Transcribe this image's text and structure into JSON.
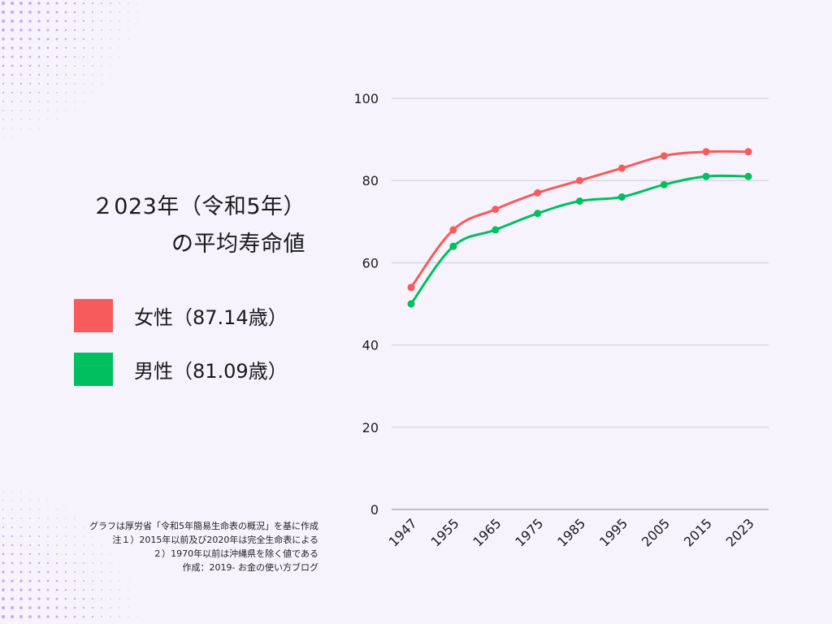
{
  "title": {
    "line1": "２023年（令和5年）",
    "line2": "の平均寿命値"
  },
  "legend": [
    {
      "label": "女性（87.14歳）",
      "color": "#f75b5b"
    },
    {
      "label": "男性（81.09歳）",
      "color": "#00bf5f"
    }
  ],
  "notes": [
    "グラフは厚労省「令和5年簡易生命表の概況」を基に作成",
    "注１）2015年以前及び2020年は完全生命表による",
    "２）1970年以前は沖縄県を除く値である",
    "作成：2019- お金の使い方ブログ"
  ],
  "colors": {
    "background": "#f6f3fd",
    "female": "#f75b5b",
    "male": "#00bf5f",
    "grid": "#cfcbd6",
    "dots": "#c7a8ec"
  },
  "chart_data": {
    "type": "line",
    "categories": [
      "1947",
      "1955",
      "1965",
      "1975",
      "1985",
      "1995",
      "2005",
      "2015",
      "2023"
    ],
    "series": [
      {
        "name": "女性（87.14歳）",
        "values": [
          54,
          68,
          73,
          77,
          80,
          83,
          86,
          87,
          87
        ],
        "color": "#f75b5b"
      },
      {
        "name": "男性（81.09歳）",
        "values": [
          50,
          64,
          68,
          72,
          75,
          76,
          79,
          81,
          81
        ],
        "color": "#00bf5f"
      }
    ],
    "yticks": [
      0,
      20,
      40,
      60,
      80,
      100
    ],
    "ylim": [
      0,
      100
    ],
    "xlabel": "",
    "ylabel": "",
    "grid": true,
    "legend": "left"
  }
}
